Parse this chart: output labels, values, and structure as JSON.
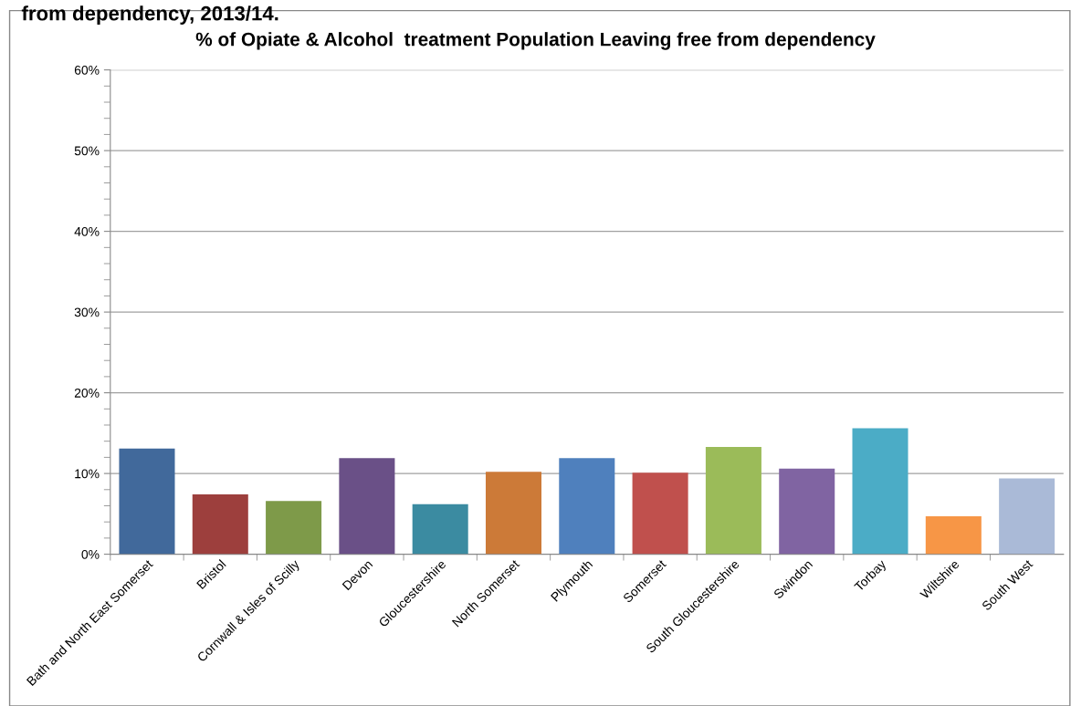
{
  "chart_data": {
    "type": "bar",
    "title": "% of Opiate & Alcohol  treatment Population Leaving free from dependency",
    "annotations": [
      "from dependency, 2013/14."
    ],
    "categories": [
      "Bath and North East Somerset",
      "Bristol",
      "Cornwall & Isles of Scilly",
      "Devon",
      "Gloucestershire",
      "North Somerset",
      "Plymouth",
      "Somerset",
      "South Gloucestershire",
      "Swindon",
      "Torbay",
      "Wiltshire",
      "South West"
    ],
    "values": [
      13.1,
      7.4,
      6.6,
      11.9,
      6.2,
      10.2,
      11.9,
      10.1,
      13.3,
      10.6,
      15.6,
      4.7,
      9.4
    ],
    "colors": [
      "#41699b",
      "#9d3f3d",
      "#7e9a49",
      "#6a5087",
      "#3b8ba1",
      "#cc7a38",
      "#4f80bd",
      "#c0504d",
      "#9bbb59",
      "#8064a2",
      "#4bacc6",
      "#f79646",
      "#aabad7"
    ],
    "ylim": [
      0,
      60
    ],
    "yticks": [
      {
        "value": 0,
        "label": "0%"
      },
      {
        "value": 10,
        "label": "10%"
      },
      {
        "value": 20,
        "label": "20%"
      },
      {
        "value": 30,
        "label": "30%"
      },
      {
        "value": 40,
        "label": "40%"
      },
      {
        "value": 50,
        "label": "50%"
      },
      {
        "value": 60,
        "label": "60%"
      }
    ],
    "grid": "y"
  }
}
